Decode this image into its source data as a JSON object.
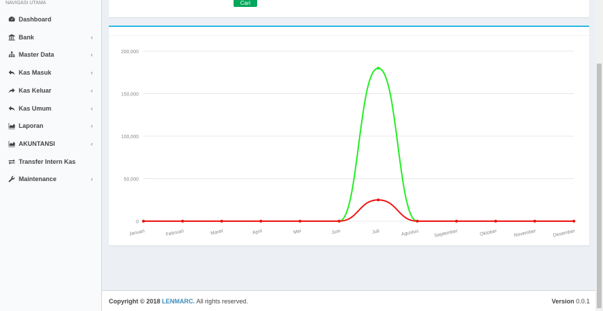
{
  "sidebar": {
    "header": "NAVIGASI UTAMA",
    "items": [
      {
        "label": "Dashboard",
        "icon": "dashboard-icon",
        "chevron": ""
      },
      {
        "label": "Bank",
        "icon": "bank-icon",
        "chevron": "‹"
      },
      {
        "label": "Master Data",
        "icon": "sitemap-icon",
        "chevron": "‹"
      },
      {
        "label": "Kas Masuk",
        "icon": "reply-icon",
        "chevron": "‹"
      },
      {
        "label": "Kas Keluar",
        "icon": "share-icon",
        "chevron": "‹"
      },
      {
        "label": "Kas Umum",
        "icon": "reply-icon",
        "chevron": "‹"
      },
      {
        "label": "Laporan",
        "icon": "area-chart-icon",
        "chevron": "‹"
      },
      {
        "label": "AKUNTANSI",
        "icon": "area-chart-icon",
        "chevron": "‹"
      },
      {
        "label": "Transfer Intern Kas",
        "icon": "exchange-icon",
        "chevron": ""
      },
      {
        "label": "Maintenance",
        "icon": "wrench-icon",
        "chevron": "‹"
      }
    ]
  },
  "top_box": {
    "button_label": "Cari"
  },
  "chart_data": {
    "type": "line",
    "categories": [
      "Januari",
      "Februari",
      "Maret",
      "April",
      "Mei",
      "Juni",
      "Juli",
      "Agustus",
      "September",
      "Oktober",
      "November",
      "Desember"
    ],
    "series": [
      {
        "color": "#22ee22",
        "values": [
          0,
          0,
          0,
          0,
          0,
          0,
          180000,
          0,
          0,
          0,
          0,
          0
        ]
      },
      {
        "color": "#ee1111",
        "values": [
          0,
          0,
          0,
          0,
          0,
          0,
          25000,
          0,
          0,
          0,
          0,
          0
        ]
      }
    ],
    "y_ticks": [
      "0",
      "50,000",
      "100,000",
      "150,000",
      "200,000"
    ],
    "ylim": [
      0,
      200000
    ],
    "grid": true
  },
  "footer": {
    "copyright_prefix": "Copyright © 2018",
    "brand": "LENMARC.",
    "rights": "All rights reserved.",
    "version_label": "Version",
    "version_value": "0.0.1"
  }
}
